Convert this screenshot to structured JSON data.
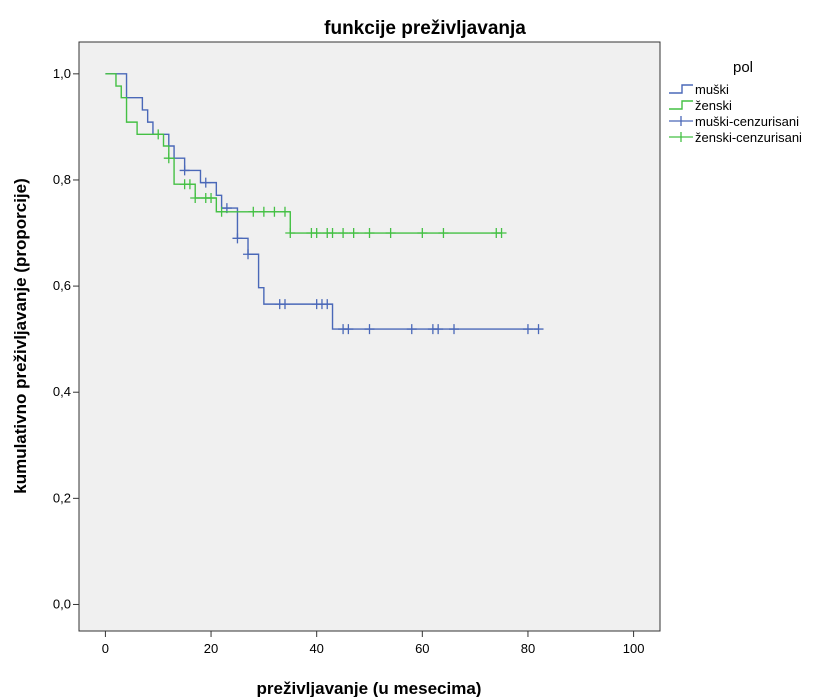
{
  "chart_data": {
    "type": "line",
    "title": "funkcije preživljavanja",
    "xlabel": "preživljavanje (u mesecima)",
    "ylabel": "kumulativno preživljavanje (proporcije)",
    "xlim": [
      -5,
      105
    ],
    "ylim": [
      -0.05,
      1.06
    ],
    "xticks": [
      {
        "value": 0,
        "label": "0"
      },
      {
        "value": 20,
        "label": "20"
      },
      {
        "value": 40,
        "label": "40"
      },
      {
        "value": 60,
        "label": "60"
      },
      {
        "value": 80,
        "label": "80"
      },
      {
        "value": 100,
        "label": "100"
      }
    ],
    "yticks": [
      {
        "value": 0.0,
        "label": "0,0"
      },
      {
        "value": 0.2,
        "label": "0,2"
      },
      {
        "value": 0.4,
        "label": "0,4"
      },
      {
        "value": 0.6,
        "label": "0,6"
      },
      {
        "value": 0.8,
        "label": "0,8"
      },
      {
        "value": 1.0,
        "label": "1,0"
      }
    ],
    "grid": false,
    "plot_background": "#f0f0f0",
    "legend": {
      "title": "pol",
      "position": "right",
      "entries": [
        {
          "label": "muški",
          "kind": "step",
          "color": "#4a68b8"
        },
        {
          "label": "ženski",
          "kind": "step",
          "color": "#44c044"
        },
        {
          "label": "muški-cenzurisani",
          "kind": "censor",
          "color": "#4a68b8"
        },
        {
          "label": "ženski-cenzurisani",
          "kind": "censor",
          "color": "#44c044"
        }
      ]
    },
    "series": [
      {
        "name": "muški",
        "color": "#4a68b8",
        "steps": [
          [
            0,
            1.0
          ],
          [
            4,
            0.955
          ],
          [
            7,
            0.932
          ],
          [
            8,
            0.909
          ],
          [
            9,
            0.886
          ],
          [
            12,
            0.864
          ],
          [
            13,
            0.841
          ],
          [
            15,
            0.818
          ],
          [
            18,
            0.795
          ],
          [
            21,
            0.771
          ],
          [
            22,
            0.747
          ],
          [
            25,
            0.69
          ],
          [
            27,
            0.66
          ],
          [
            29,
            0.597
          ],
          [
            30,
            0.566
          ],
          [
            43,
            0.519
          ]
        ],
        "end": 82,
        "censored": [
          [
            15,
            0.818
          ],
          [
            19,
            0.795
          ],
          [
            23,
            0.747
          ],
          [
            25,
            0.69
          ],
          [
            27,
            0.66
          ],
          [
            33,
            0.566
          ],
          [
            34,
            0.566
          ],
          [
            40,
            0.566
          ],
          [
            41,
            0.566
          ],
          [
            42,
            0.566
          ],
          [
            45,
            0.519
          ],
          [
            46,
            0.519
          ],
          [
            50,
            0.519
          ],
          [
            58,
            0.519
          ],
          [
            62,
            0.519
          ],
          [
            63,
            0.519
          ],
          [
            66,
            0.519
          ],
          [
            80,
            0.519
          ],
          [
            82,
            0.519
          ]
        ]
      },
      {
        "name": "ženski",
        "color": "#44c044",
        "steps": [
          [
            0,
            1.0
          ],
          [
            2,
            0.977
          ],
          [
            3,
            0.955
          ],
          [
            4,
            0.909
          ],
          [
            6,
            0.886
          ],
          [
            11,
            0.864
          ],
          [
            12,
            0.841
          ],
          [
            13,
            0.792
          ],
          [
            17,
            0.766
          ],
          [
            21,
            0.74
          ],
          [
            35,
            0.7
          ]
        ],
        "end": 75,
        "censored": [
          [
            10,
            0.886
          ],
          [
            12,
            0.841
          ],
          [
            15,
            0.792
          ],
          [
            16,
            0.792
          ],
          [
            17,
            0.766
          ],
          [
            19,
            0.766
          ],
          [
            20,
            0.766
          ],
          [
            22,
            0.74
          ],
          [
            28,
            0.74
          ],
          [
            30,
            0.74
          ],
          [
            32,
            0.74
          ],
          [
            34,
            0.74
          ],
          [
            35,
            0.7
          ],
          [
            39,
            0.7
          ],
          [
            40,
            0.7
          ],
          [
            42,
            0.7
          ],
          [
            43,
            0.7
          ],
          [
            45,
            0.7
          ],
          [
            47,
            0.7
          ],
          [
            50,
            0.7
          ],
          [
            54,
            0.7
          ],
          [
            60,
            0.7
          ],
          [
            64,
            0.7
          ],
          [
            74,
            0.7
          ],
          [
            75,
            0.7
          ]
        ]
      }
    ]
  }
}
